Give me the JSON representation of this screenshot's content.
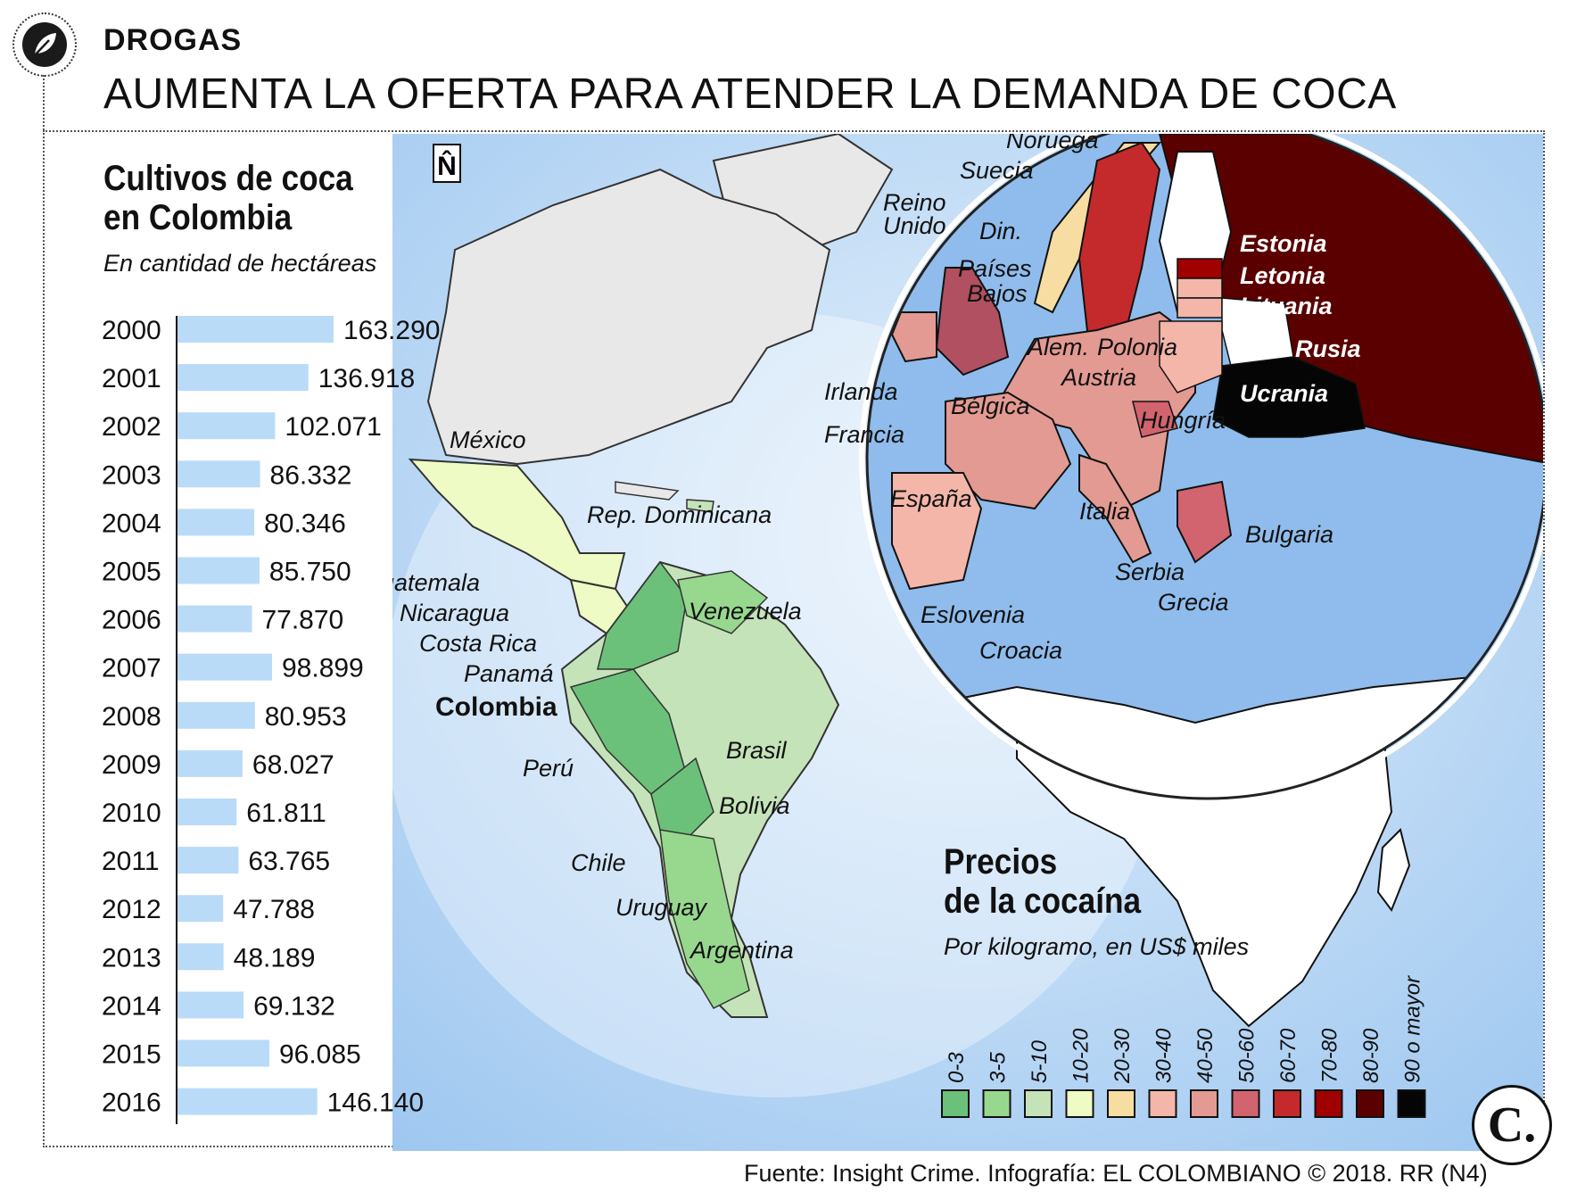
{
  "header": {
    "section": "DROGAS",
    "headline": "AUMENTA LA OFERTA PARA ATENDER LA DEMANDA DE COCA"
  },
  "crops": {
    "title_line1": "Cultivos de coca",
    "title_line2": "en Colombia",
    "subtitle": "En cantidad de hectáreas"
  },
  "chart_data": {
    "type": "bar",
    "orientation": "horizontal",
    "title": "Cultivos de coca en Colombia",
    "subtitle": "En cantidad de hectáreas",
    "categories": [
      "2000",
      "2001",
      "2002",
      "2003",
      "2004",
      "2005",
      "2006",
      "2007",
      "2008",
      "2009",
      "2010",
      "2011",
      "2012",
      "2013",
      "2014",
      "2015",
      "2016"
    ],
    "values": [
      163290,
      136918,
      102071,
      86332,
      80346,
      85750,
      77870,
      98899,
      80953,
      68027,
      61811,
      63765,
      47788,
      48189,
      69132,
      96085,
      146140
    ],
    "value_labels": [
      "163.290",
      "136.918",
      "102.071",
      "86.332",
      "80.346",
      "85.750",
      "77.870",
      "98.899",
      "80.953",
      "68.027",
      "61.811",
      "63.765",
      "47.788",
      "48.189",
      "69.132",
      "96.085",
      "146.140"
    ],
    "bar_color": "#b9dbf7"
  },
  "map": {
    "north_symbol": "N̂",
    "americas_labels": [
      "México",
      "Rep. Dominicana",
      "Guatemala",
      "Nicaragua",
      "Costa Rica",
      "Panamá",
      "Venezuela",
      "Brasil",
      "Perú",
      "Bolivia",
      "Chile",
      "Uruguay",
      "Argentina"
    ],
    "highlight": "Colombia",
    "europe_labels": [
      "Noruega",
      "Suecia",
      "Reino",
      "Unido",
      "Din.",
      "Países",
      "Bajos",
      "Alem.",
      "Polonia",
      "Irlanda",
      "Bélgica",
      "Austria",
      "Francia",
      "Hungría",
      "España",
      "Italia",
      "Serbia",
      "Eslovenia",
      "Grecia",
      "Croacia",
      "Bulgaria"
    ],
    "europe_white_labels": [
      "Estonia",
      "Letonia",
      "Lituania",
      "Rusia",
      "Ucrania"
    ]
  },
  "prices": {
    "title_line1": "Precios",
    "title_line2": "de la cocaína",
    "subtitle": "Por kilogramo, en US$ miles",
    "legend": [
      {
        "label": "0-3",
        "color": "#6cc17a"
      },
      {
        "label": "3-5",
        "color": "#97d88e"
      },
      {
        "label": "5-10",
        "color": "#c5e3b8"
      },
      {
        "label": "10-20",
        "color": "#eefbc4"
      },
      {
        "label": "20-30",
        "color": "#f7dda1"
      },
      {
        "label": "30-40",
        "color": "#f3b6a9"
      },
      {
        "label": "40-50",
        "color": "#e39a92"
      },
      {
        "label": "50-60",
        "color": "#d2646f"
      },
      {
        "label": "60-70",
        "color": "#c42a2c"
      },
      {
        "label": "70-80",
        "color": "#a00000"
      },
      {
        "label": "80-90",
        "color": "#5a0000"
      },
      {
        "label": "90 o mayor",
        "color": "#050505"
      }
    ]
  },
  "colors": {
    "ocean": "#8fbcec",
    "ocean_light": "#cfe4f8",
    "land_grey": "#e8e8e8"
  },
  "logo": "C.",
  "source": "Fuente: Insight Crime. Infografía: EL COLOMBIANO © 2018. RR (N4)"
}
